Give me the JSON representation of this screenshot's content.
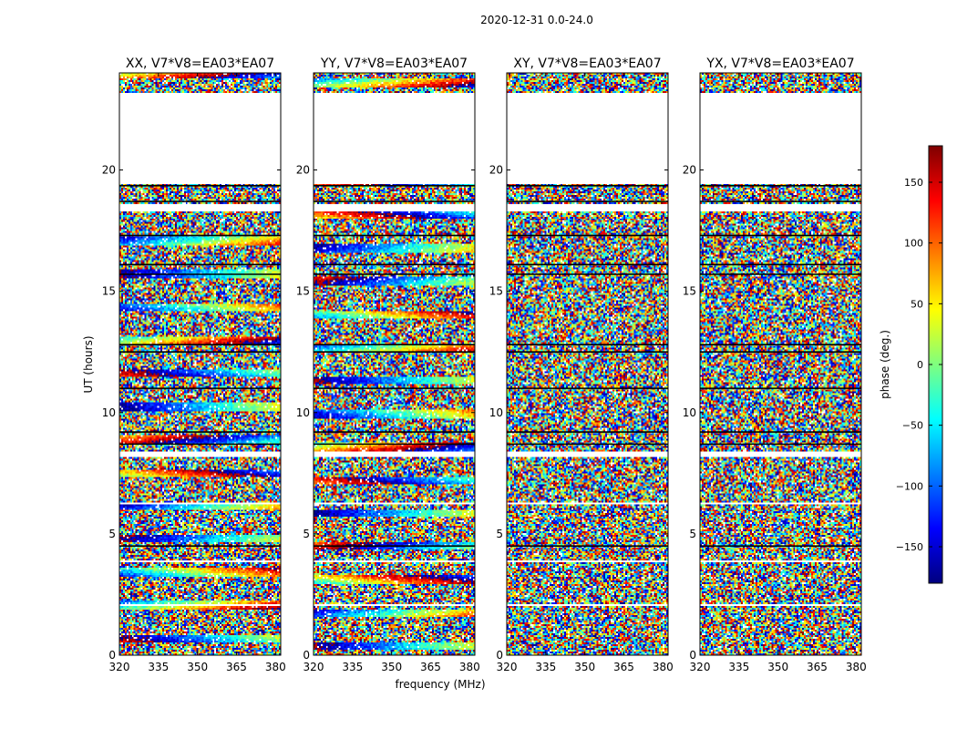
{
  "figure_title": "2020-12-31 0.0-24.0",
  "chart_data": {
    "type": "heatmap",
    "title": "2020-12-31 0.0-24.0",
    "xlabel": "frequency (MHz)",
    "ylabel": "UT (hours)",
    "xlim": [
      320,
      382
    ],
    "ylim": [
      0,
      24
    ],
    "xticks": [
      "320",
      "335",
      "350",
      "365",
      "380"
    ],
    "yticks": [
      "0",
      "5",
      "10",
      "15",
      "20"
    ],
    "panels": [
      {
        "title": "XX, V7*V8=EA03*EA07",
        "pol": "XX"
      },
      {
        "title": "YY, V7*V8=EA03*EA07",
        "pol": "YY"
      },
      {
        "title": "XY, V7*V8=EA03*EA07",
        "pol": "XY"
      },
      {
        "title": "YX, V7*V8=EA03*EA07",
        "pol": "YX"
      }
    ],
    "colorbar": {
      "label": "phase (deg.)",
      "range": [
        -180,
        180
      ],
      "ticks": [
        "150",
        "100",
        "50",
        "0",
        "−50",
        "−100",
        "−150"
      ],
      "colormap": "jet"
    },
    "blank_time_ranges_hours": [
      [
        19.4,
        23.2
      ],
      [
        18.3,
        18.6
      ],
      [
        8.2,
        8.4
      ],
      [
        3.8,
        3.9
      ],
      [
        2.0,
        2.1
      ],
      [
        6.2,
        6.3
      ]
    ],
    "black_line_times_hours": [
      19.35,
      18.7,
      17.3,
      16.1,
      15.7,
      12.8,
      12.5,
      11.0,
      9.2,
      8.7,
      4.5
    ]
  }
}
